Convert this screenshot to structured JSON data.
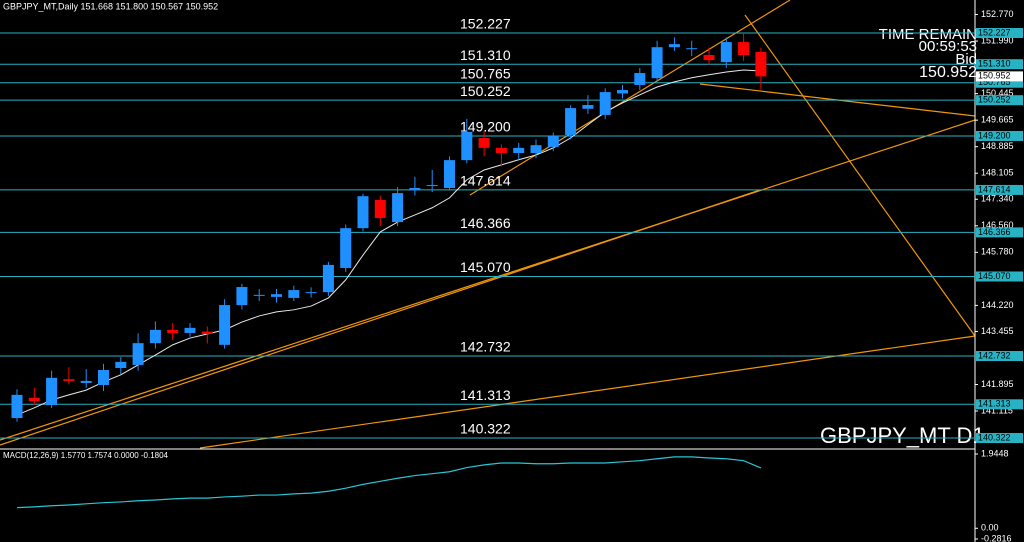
{
  "chart_data": [
    {
      "type": "candlestick",
      "title": "GBPJPY_MT,Daily  151.668 151.800 150.567 150.952",
      "symbol_label": "GBPJPY_MT D1",
      "timer_label": "TIME REMAIN",
      "timer_value": "00:59:53",
      "bid_label": "Bid",
      "bid": 150.952,
      "up_color": "#1e90ff",
      "down_color": "#ff0000",
      "level_color": "#27b3c4",
      "ylim": [
        140.028,
        153.197
      ],
      "yticks": [
        {
          "value": 152.77,
          "label": "152.770"
        },
        {
          "value": 151.99,
          "label": "151.990"
        },
        150.445,
        149.665,
        148.885,
        148.105,
        {
          "value": 147.34,
          "label": "147.340"
        },
        {
          "value": 146.56,
          "label": "146.560"
        },
        {
          "value": 145.78,
          "label": "145.780"
        },
        {
          "value": 144.22,
          "label": "144.220"
        },
        143.455,
        141.895,
        141.115
      ],
      "levels": [
        152.227,
        {
          "value": 151.31,
          "label": "151.310"
        },
        150.765,
        150.252,
        {
          "value": 149.2,
          "label": "149.200"
        },
        147.614,
        146.366,
        {
          "value": 145.07,
          "label": "145.070"
        },
        142.732,
        141.313,
        140.322
      ],
      "open": [
        140.91,
        141.5,
        141.29,
        142.05,
        141.94,
        141.88,
        142.38,
        142.47,
        143.11,
        143.5,
        143.41,
        143.45,
        143.06,
        144.23,
        144.5,
        144.47,
        144.44,
        144.6,
        144.61,
        145.32,
        146.49,
        147.32,
        146.67,
        147.6,
        147.76,
        147.67,
        148.49,
        149.14,
        148.85,
        148.7,
        148.7,
        148.88,
        149.23,
        150.0,
        149.82,
        150.45,
        150.7,
        150.9,
        151.81,
        151.76,
        151.58,
        151.37,
        151.96,
        151.668
      ],
      "high": [
        141.75,
        141.8,
        142.3,
        142.4,
        142.35,
        142.5,
        142.7,
        143.4,
        143.75,
        143.7,
        143.7,
        143.6,
        144.4,
        144.85,
        144.7,
        144.7,
        144.8,
        144.75,
        145.5,
        146.6,
        147.5,
        147.45,
        147.7,
        148.0,
        148.2,
        148.6,
        149.7,
        149.35,
        148.95,
        149.0,
        149.1,
        149.3,
        150.1,
        150.4,
        150.6,
        150.7,
        151.2,
        152.0,
        152.1,
        152.0,
        151.8,
        152.1,
        152.2,
        151.8
      ],
      "low": [
        140.8,
        141.3,
        141.2,
        141.9,
        141.8,
        141.7,
        142.2,
        142.3,
        142.95,
        143.2,
        143.3,
        143.1,
        142.95,
        144.1,
        144.35,
        144.3,
        144.35,
        144.45,
        144.5,
        145.2,
        146.4,
        146.55,
        146.55,
        147.45,
        147.55,
        147.6,
        148.4,
        148.6,
        148.3,
        148.5,
        148.55,
        148.75,
        149.1,
        149.85,
        149.7,
        150.3,
        150.55,
        150.8,
        151.7,
        151.55,
        151.3,
        151.2,
        151.4,
        150.567
      ],
      "close": [
        141.59,
        141.4,
        142.09,
        142.0,
        142.0,
        142.32,
        142.56,
        143.11,
        143.5,
        143.41,
        143.56,
        143.38,
        144.23,
        144.76,
        144.53,
        144.55,
        144.67,
        144.61,
        145.41,
        146.49,
        147.43,
        146.79,
        147.52,
        147.67,
        147.76,
        148.49,
        149.32,
        148.85,
        148.7,
        148.85,
        148.93,
        149.2,
        150.02,
        150.11,
        150.49,
        150.55,
        151.05,
        151.81,
        151.9,
        151.78,
        151.43,
        151.96,
        151.58,
        150.952
      ],
      "series": [
        {
          "color": "#e8e8e8",
          "values": [
            141.0,
            141.21,
            141.44,
            141.59,
            141.73,
            141.97,
            142.18,
            142.47,
            142.76,
            143.06,
            143.26,
            143.38,
            143.5,
            143.73,
            143.91,
            144.03,
            144.09,
            144.2,
            144.44,
            144.97,
            145.7,
            146.38,
            146.67,
            146.88,
            147.09,
            147.38,
            147.91,
            148.2,
            148.35,
            148.5,
            148.64,
            148.85,
            149.14,
            149.53,
            149.91,
            150.17,
            150.41,
            150.64,
            150.79,
            150.91,
            151.0,
            151.08,
            151.14,
            151.11
          ]
        }
      ]
    },
    {
      "type": "line",
      "title": "MACD(12,26,9) 1.5770 1.7574 0.0000 -0.1804",
      "ylim": [
        -0.36,
        2.05
      ],
      "yticks": [
        1.9448,
        {
          "value": 0,
          "label": "0.00"
        },
        -0.2816
      ],
      "series": [
        {
          "color": "#29c5d6",
          "values": [
            0.54,
            0.56,
            0.59,
            0.61,
            0.64,
            0.67,
            0.69,
            0.72,
            0.74,
            0.77,
            0.79,
            0.79,
            0.82,
            0.84,
            0.87,
            0.87,
            0.9,
            0.92,
            0.97,
            1.05,
            1.15,
            1.23,
            1.31,
            1.38,
            1.43,
            1.48,
            1.59,
            1.66,
            1.71,
            1.71,
            1.69,
            1.69,
            1.71,
            1.71,
            1.71,
            1.74,
            1.77,
            1.82,
            1.87,
            1.87,
            1.84,
            1.82,
            1.77,
            1.58
          ]
        }
      ]
    }
  ]
}
